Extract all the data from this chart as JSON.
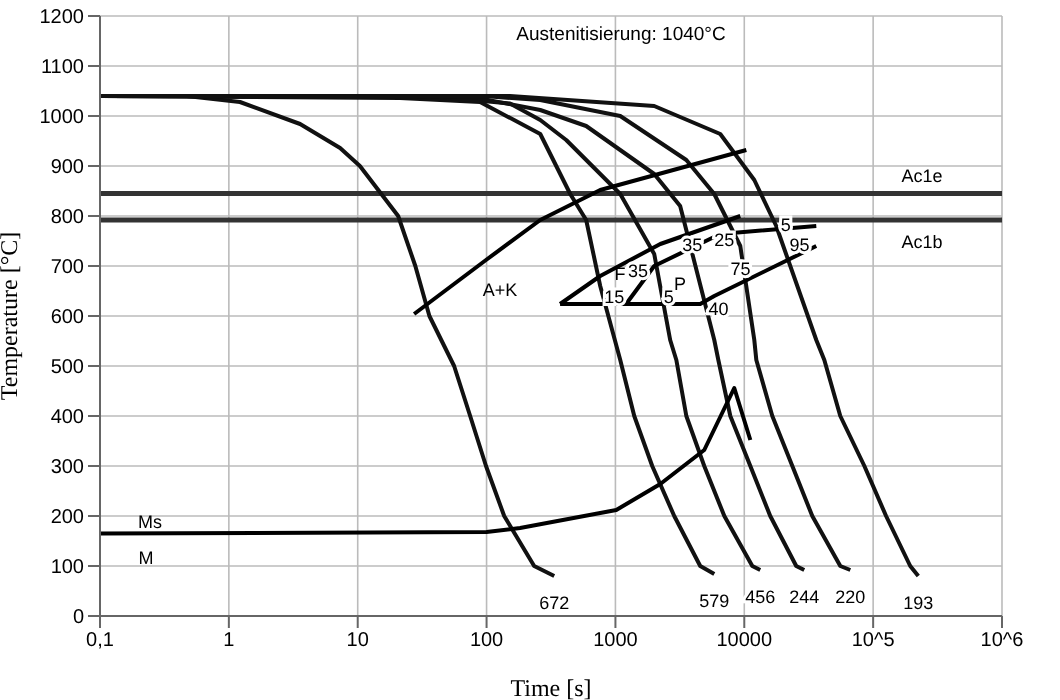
{
  "chart_data": {
    "type": "line",
    "title": "Austenitisierung: 1040°C",
    "xlabel": "Time [s]",
    "ylabel": "Temperature [°C]",
    "log": "x",
    "grid": true,
    "xlim": [
      0.1,
      1000000
    ],
    "xticks": [
      {
        "value": 0.1,
        "label": "0,1"
      },
      1,
      10,
      100,
      1000,
      10000,
      {
        "value": 100000,
        "label": "10^5"
      },
      {
        "value": 1000000,
        "label": "10^6"
      }
    ],
    "ylim": [
      0,
      1200
    ],
    "yticks": [
      0,
      100,
      200,
      300,
      400,
      500,
      600,
      700,
      800,
      900,
      1000,
      1100,
      1200
    ],
    "series": [
      {
        "color": "#111111",
        "x": [
          0.1,
          0.47,
          1.22,
          3.57,
          7.3,
          10.4,
          20.6,
          28,
          36,
          56,
          74.6,
          99,
          137,
          234,
          335
        ],
        "values": [
          1040,
          1040,
          1028,
          984,
          936,
          900,
          800,
          700,
          600,
          500,
          400,
          300,
          200,
          100,
          80
        ]
      },
      {
        "color": "#111111",
        "x": [
          0.1,
          21.3,
          89,
          261,
          446,
          593,
          762,
          1090,
          1400,
          1930,
          2860,
          4550,
          5850
        ],
        "values": [
          1040,
          1036,
          1028,
          964,
          844,
          792,
          660,
          512,
          400,
          300,
          200,
          100,
          84
        ]
      },
      {
        "color": "#111111",
        "x": [
          0.1,
          43.6,
          152,
          261,
          415,
          1090,
          2000,
          2660,
          2970,
          3550,
          4890,
          7000,
          11540,
          13300
        ],
        "values": [
          1040,
          1038,
          1025,
          992,
          952,
          844,
          724,
          552,
          512,
          400,
          300,
          200,
          100,
          92
        ]
      },
      {
        "color": "#111111",
        "x": [
          0.1,
          74.6,
          261,
          593,
          2000,
          3180,
          5850,
          6290,
          7790,
          11140,
          15900,
          25300,
          29200
        ],
        "values": [
          1040,
          1039,
          1012,
          980,
          884,
          820,
          552,
          512,
          400,
          300,
          200,
          100,
          92
        ]
      },
      {
        "color": "#111111",
        "x": [
          0.1,
          107,
          261,
          1090,
          3550,
          5850,
          9310,
          11960,
          12400,
          16500,
          23600,
          33700,
          55600,
          66500
        ],
        "values": [
          1040,
          1039,
          1032,
          1000,
          912,
          844,
          740,
          552,
          512,
          400,
          300,
          200,
          100,
          92
        ]
      },
      {
        "color": "#111111",
        "x": [
          0.1,
          152,
          2000,
          6510,
          11960,
          17700,
          36200,
          41800,
          55600,
          85500,
          126000,
          194000,
          224000
        ],
        "values": [
          1040,
          1040,
          1020,
          964,
          872,
          780,
          552,
          512,
          400,
          300,
          200,
          100,
          80
        ]
      },
      {
        "color": "#000000",
        "x": [
          0.1,
          100,
          182,
          1015,
          2230,
          4890,
          8360,
          11140
        ],
        "values": [
          165,
          168,
          176,
          212,
          264,
          332,
          456,
          352
        ]
      },
      {
        "color": "#000000",
        "x": [
          27.4,
          99,
          261,
          762,
          10370
        ],
        "values": [
          604,
          712,
          792,
          852,
          932
        ]
      },
      {
        "color": "#000000",
        "x": [
          372,
          762,
          2230,
          9310
        ],
        "values": [
          624,
          680,
          744,
          800
        ]
      },
      {
        "color": "#000000",
        "x": [
          372,
          4550,
          5850,
          36200
        ],
        "values": [
          624,
          624,
          640,
          740
        ]
      },
      {
        "color": "#000000",
        "x": [
          1210,
          2000,
          6510,
          36200
        ],
        "values": [
          624,
          700,
          764,
          780
        ]
      }
    ],
    "ref_lines": [
      {
        "axis": "y",
        "value": 845,
        "label": "Ac1e",
        "color": "#333333"
      },
      {
        "axis": "y",
        "value": 792,
        "label": "Ac1b",
        "color": "#333333"
      }
    ],
    "annotations": [
      "Ms",
      "M",
      "A+K",
      "F",
      "P",
      {
        "text": "15",
        "x": 980,
        "y": 636
      },
      {
        "text": "5",
        "x": 2590,
        "y": 636
      },
      {
        "text": "40",
        "x": 6300,
        "y": 612
      },
      {
        "text": "35",
        "x": 1500,
        "y": 688
      },
      {
        "text": "35",
        "x": 3940,
        "y": 740
      },
      {
        "text": "25",
        "x": 7000,
        "y": 750
      },
      {
        "text": "75",
        "x": 9350,
        "y": 692
      },
      {
        "text": "5",
        "x": 21000,
        "y": 780
      },
      {
        "text": "95",
        "x": 26800,
        "y": 740
      },
      {
        "text": "672",
        "x": 335,
        "y": 80
      },
      {
        "text": "579",
        "x": 5850,
        "y": 84
      },
      {
        "text": "456",
        "x": 13300,
        "y": 92
      },
      {
        "text": "244",
        "x": 29200,
        "y": 92
      },
      {
        "text": "220",
        "x": 66500,
        "y": 92
      },
      {
        "text": "193",
        "x": 224000,
        "y": 80
      }
    ]
  }
}
